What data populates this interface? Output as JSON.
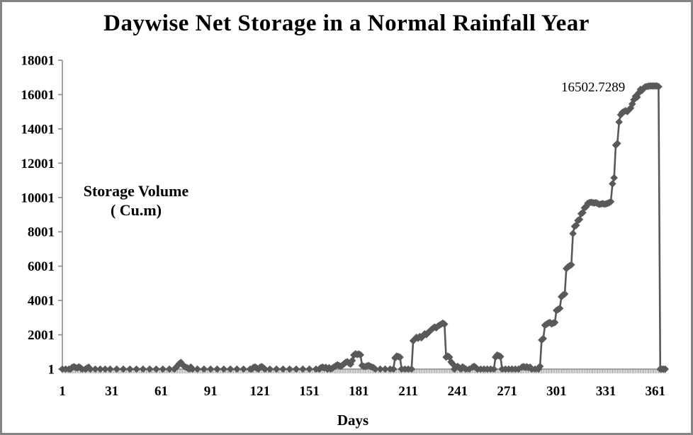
{
  "frame": {
    "background": "#ffffff",
    "border_color": "#848484"
  },
  "chart_data": {
    "type": "line",
    "title": "Daywise Net Storage in a Normal Rainfall Year",
    "xlabel": "Days",
    "ylabel_lines": {
      "0": "Storage Volume",
      "1": "( Cu.m)"
    },
    "annotation": {
      "text": "16502.7289"
    },
    "legend": "none",
    "grid": false,
    "marker": "diamond",
    "series_color": "#595959",
    "axis_color": "#8a8a8a",
    "text_color": "#000000",
    "xlim": [
      1,
      368
    ],
    "ylim": [
      1,
      18001
    ],
    "x_ticks": [
      1,
      31,
      61,
      91,
      121,
      151,
      181,
      211,
      241,
      271,
      301,
      331,
      361
    ],
    "y_ticks": [
      1,
      2001,
      4001,
      6001,
      8001,
      10001,
      12001,
      14001,
      16001,
      18001
    ],
    "series": [
      {
        "name": "Daywise Net Storage",
        "points": [
          [
            1,
            1
          ],
          [
            3,
            1
          ],
          [
            5,
            1
          ],
          [
            6,
            1
          ],
          [
            7,
            100
          ],
          [
            8,
            140
          ],
          [
            9,
            90
          ],
          [
            10,
            60
          ],
          [
            11,
            130
          ],
          [
            12,
            70
          ],
          [
            13,
            1
          ],
          [
            15,
            1
          ],
          [
            16,
            60
          ],
          [
            17,
            110
          ],
          [
            18,
            1
          ],
          [
            21,
            1
          ],
          [
            24,
            1
          ],
          [
            27,
            1
          ],
          [
            30,
            1
          ],
          [
            34,
            1
          ],
          [
            38,
            1
          ],
          [
            42,
            1
          ],
          [
            46,
            1
          ],
          [
            50,
            1
          ],
          [
            54,
            1
          ],
          [
            58,
            1
          ],
          [
            62,
            1
          ],
          [
            66,
            1
          ],
          [
            69,
            1
          ],
          [
            70,
            90
          ],
          [
            71,
            200
          ],
          [
            72,
            320
          ],
          [
            73,
            390
          ],
          [
            74,
            260
          ],
          [
            75,
            160
          ],
          [
            76,
            110
          ],
          [
            77,
            70
          ],
          [
            78,
            1
          ],
          [
            79,
            120
          ],
          [
            80,
            1
          ],
          [
            83,
            1
          ],
          [
            87,
            1
          ],
          [
            91,
            1
          ],
          [
            95,
            1
          ],
          [
            99,
            1
          ],
          [
            103,
            1
          ],
          [
            107,
            1
          ],
          [
            111,
            1
          ],
          [
            115,
            1
          ],
          [
            116,
            1
          ],
          [
            117,
            90
          ],
          [
            118,
            130
          ],
          [
            119,
            60
          ],
          [
            120,
            1
          ],
          [
            121,
            100
          ],
          [
            122,
            150
          ],
          [
            123,
            80
          ],
          [
            124,
            1
          ],
          [
            127,
            1
          ],
          [
            131,
            1
          ],
          [
            135,
            1
          ],
          [
            139,
            1
          ],
          [
            143,
            1
          ],
          [
            147,
            1
          ],
          [
            151,
            1
          ],
          [
            155,
            1
          ],
          [
            157,
            1
          ],
          [
            158,
            80
          ],
          [
            159,
            120
          ],
          [
            160,
            60
          ],
          [
            161,
            100
          ],
          [
            162,
            1
          ],
          [
            163,
            80
          ],
          [
            164,
            1
          ],
          [
            165,
            60
          ],
          [
            166,
            130
          ],
          [
            167,
            190
          ],
          [
            168,
            250
          ],
          [
            169,
            200
          ],
          [
            170,
            160
          ],
          [
            171,
            230
          ],
          [
            172,
            310
          ],
          [
            173,
            390
          ],
          [
            174,
            430
          ],
          [
            175,
            350
          ],
          [
            176,
            290
          ],
          [
            177,
            500
          ],
          [
            178,
            820
          ],
          [
            179,
            890
          ],
          [
            180,
            850
          ],
          [
            181,
            880
          ],
          [
            182,
            830
          ],
          [
            183,
            210
          ],
          [
            184,
            160
          ],
          [
            185,
            140
          ],
          [
            186,
            190
          ],
          [
            187,
            210
          ],
          [
            188,
            160
          ],
          [
            189,
            120
          ],
          [
            190,
            80
          ],
          [
            191,
            1
          ],
          [
            194,
            1
          ],
          [
            197,
            1
          ],
          [
            200,
            1
          ],
          [
            202,
            1
          ],
          [
            203,
            650
          ],
          [
            204,
            760
          ],
          [
            205,
            730
          ],
          [
            206,
            690
          ],
          [
            207,
            1
          ],
          [
            209,
            1
          ],
          [
            211,
            1
          ],
          [
            213,
            1
          ],
          [
            214,
            1650
          ],
          [
            215,
            1750
          ],
          [
            216,
            1850
          ],
          [
            217,
            1800
          ],
          [
            218,
            1900
          ],
          [
            219,
            1830
          ],
          [
            220,
            1950
          ],
          [
            221,
            2060
          ],
          [
            222,
            2010
          ],
          [
            223,
            2120
          ],
          [
            224,
            2200
          ],
          [
            225,
            2300
          ],
          [
            226,
            2380
          ],
          [
            227,
            2450
          ],
          [
            228,
            2410
          ],
          [
            229,
            2500
          ],
          [
            230,
            2560
          ],
          [
            231,
            2620
          ],
          [
            232,
            2680
          ],
          [
            233,
            2620
          ],
          [
            234,
            700
          ],
          [
            235,
            760
          ],
          [
            236,
            700
          ],
          [
            237,
            420
          ],
          [
            238,
            300
          ],
          [
            239,
            1
          ],
          [
            240,
            110
          ],
          [
            241,
            160
          ],
          [
            242,
            80
          ],
          [
            243,
            1
          ],
          [
            244,
            130
          ],
          [
            245,
            60
          ],
          [
            246,
            1
          ],
          [
            248,
            1
          ],
          [
            250,
            110
          ],
          [
            251,
            160
          ],
          [
            252,
            90
          ],
          [
            253,
            1
          ],
          [
            255,
            1
          ],
          [
            257,
            1
          ],
          [
            259,
            1
          ],
          [
            261,
            1
          ],
          [
            263,
            1
          ],
          [
            264,
            700
          ],
          [
            265,
            820
          ],
          [
            266,
            780
          ],
          [
            267,
            730
          ],
          [
            268,
            1
          ],
          [
            270,
            1
          ],
          [
            272,
            1
          ],
          [
            274,
            1
          ],
          [
            276,
            1
          ],
          [
            278,
            1
          ],
          [
            280,
            110
          ],
          [
            281,
            150
          ],
          [
            282,
            90
          ],
          [
            283,
            140
          ],
          [
            284,
            80
          ],
          [
            285,
            110
          ],
          [
            286,
            1
          ],
          [
            288,
            1
          ],
          [
            290,
            1
          ],
          [
            291,
            160
          ],
          [
            292,
            1700
          ],
          [
            293,
            1780
          ],
          [
            294,
            2560
          ],
          [
            295,
            2620
          ],
          [
            296,
            2680
          ],
          [
            297,
            2720
          ],
          [
            298,
            2640
          ],
          [
            299,
            2680
          ],
          [
            300,
            2720
          ],
          [
            301,
            3420
          ],
          [
            302,
            3480
          ],
          [
            303,
            3540
          ],
          [
            304,
            4220
          ],
          [
            305,
            4320
          ],
          [
            306,
            4380
          ],
          [
            307,
            5860
          ],
          [
            308,
            5960
          ],
          [
            309,
            6020
          ],
          [
            310,
            6080
          ],
          [
            311,
            7900
          ],
          [
            312,
            8320
          ],
          [
            313,
            8380
          ],
          [
            314,
            8660
          ],
          [
            315,
            8720
          ],
          [
            316,
            9060
          ],
          [
            317,
            9120
          ],
          [
            318,
            9400
          ],
          [
            319,
            9460
          ],
          [
            320,
            9660
          ],
          [
            321,
            9700
          ],
          [
            322,
            9720
          ],
          [
            323,
            9700
          ],
          [
            324,
            9680
          ],
          [
            325,
            9700
          ],
          [
            326,
            9650
          ],
          [
            327,
            9600
          ],
          [
            328,
            9620
          ],
          [
            329,
            9650
          ],
          [
            330,
            9610
          ],
          [
            331,
            9630
          ],
          [
            332,
            9660
          ],
          [
            333,
            9700
          ],
          [
            334,
            9760
          ],
          [
            335,
            10800
          ],
          [
            336,
            11150
          ],
          [
            337,
            13050
          ],
          [
            338,
            13150
          ],
          [
            339,
            14400
          ],
          [
            340,
            14820
          ],
          [
            341,
            14960
          ],
          [
            342,
            15010
          ],
          [
            343,
            15060
          ],
          [
            344,
            15010
          ],
          [
            345,
            15110
          ],
          [
            346,
            15210
          ],
          [
            347,
            15450
          ],
          [
            348,
            15700
          ],
          [
            349,
            15900
          ],
          [
            350,
            15850
          ],
          [
            351,
            16100
          ],
          [
            352,
            16300
          ],
          [
            353,
            16250
          ],
          [
            354,
            16380
          ],
          [
            355,
            16450
          ],
          [
            356,
            16470
          ],
          [
            357,
            16490
          ],
          [
            358,
            16500
          ],
          [
            359,
            16502.7289
          ],
          [
            360,
            16502.7289
          ],
          [
            361,
            16502.7289
          ],
          [
            362,
            16502.7289
          ],
          [
            363,
            16460
          ],
          [
            364,
            1
          ],
          [
            365,
            1
          ],
          [
            366,
            1
          ],
          [
            367,
            1
          ]
        ]
      }
    ]
  }
}
